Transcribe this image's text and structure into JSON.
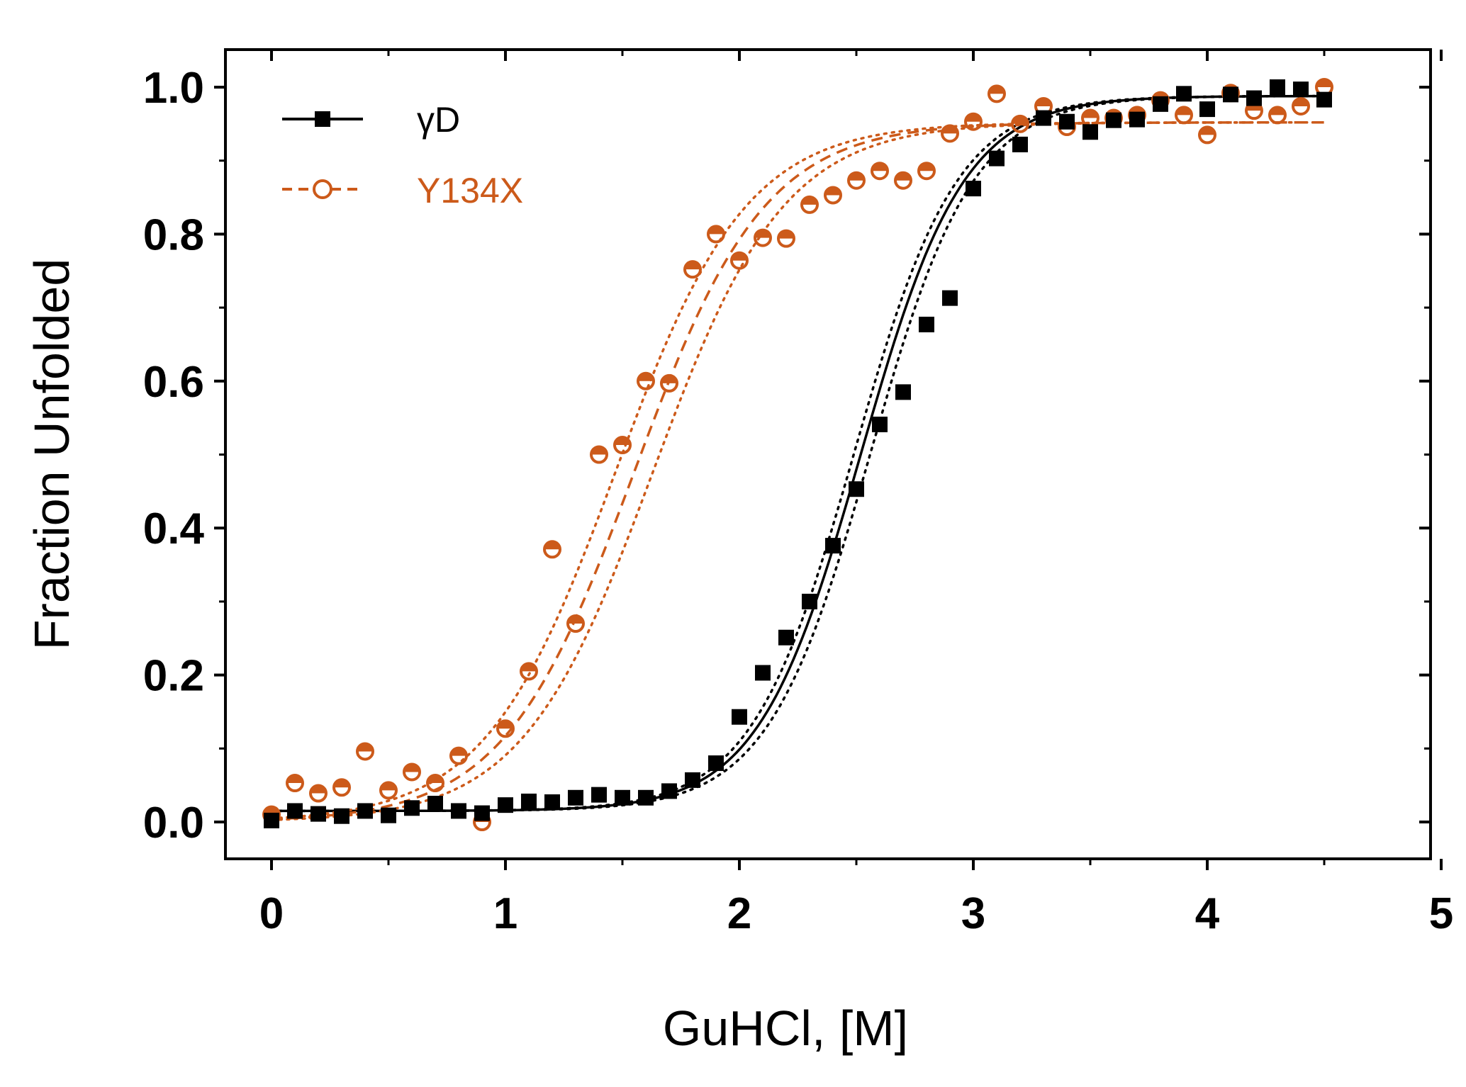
{
  "colors": {
    "gammaD": "#000000",
    "Y134X": "#cc5a1a",
    "axis": "#000000"
  },
  "chart_data": {
    "type": "scatter",
    "title": "",
    "xlabel": "GuHCl, [M]",
    "ylabel": "Fraction Unfolded",
    "xlim": [
      -0.2,
      5
    ],
    "ylim": [
      -0.05,
      1.06
    ],
    "xticks": [
      0,
      1,
      2,
      3,
      4,
      5
    ],
    "xtick_labels": [
      "0",
      "1",
      "2",
      "3",
      "4",
      "5"
    ],
    "yticks": [
      0.0,
      0.2,
      0.4,
      0.6,
      0.8,
      1.0
    ],
    "ytick_labels": [
      "0.0",
      "0.2",
      "0.4",
      "0.6",
      "0.8",
      "1.0"
    ],
    "grid": false,
    "legend_position": "top-left",
    "series": [
      {
        "name": "γD",
        "marker": "square",
        "line": "solid",
        "color": "#000000",
        "x": [
          0.0,
          0.1,
          0.2,
          0.3,
          0.4,
          0.5,
          0.6,
          0.7,
          0.8,
          0.9,
          1.0,
          1.1,
          1.2,
          1.3,
          1.4,
          1.5,
          1.6,
          1.7,
          1.8,
          1.9,
          2.0,
          2.1,
          2.2,
          2.3,
          2.4,
          2.5,
          2.6,
          2.7,
          2.8,
          2.9,
          3.0,
          3.1,
          3.2,
          3.3,
          3.4,
          3.5,
          3.6,
          3.7,
          3.8,
          3.9,
          4.0,
          4.1,
          4.2,
          4.3,
          4.4,
          4.5
        ],
        "y": [
          0.002,
          0.015,
          0.011,
          0.008,
          0.015,
          0.009,
          0.019,
          0.025,
          0.015,
          0.012,
          0.023,
          0.028,
          0.027,
          0.033,
          0.037,
          0.033,
          0.033,
          0.042,
          0.057,
          0.08,
          0.143,
          0.203,
          0.251,
          0.3,
          0.376,
          0.453,
          0.541,
          0.585,
          0.677,
          0.713,
          0.862,
          0.903,
          0.922,
          0.958,
          0.953,
          0.939,
          0.955,
          0.956,
          0.977,
          0.991,
          0.97,
          0.99,
          0.985,
          1.0,
          0.997,
          0.983
        ],
        "fit": {
          "model": "two-state sigmoid",
          "midpoint": 2.52,
          "width": 0.22,
          "baseline_folded": 0.015,
          "baseline_unfolded": 0.988
        },
        "confidence_band": {
          "style": "dotted",
          "midpoint_low": 2.49,
          "midpoint_high": 2.56
        }
      },
      {
        "name": "Y134X",
        "marker": "half-filled circle",
        "line": "dashed",
        "color": "#cc5a1a",
        "x": [
          0.0,
          0.1,
          0.2,
          0.3,
          0.4,
          0.5,
          0.6,
          0.7,
          0.8,
          0.9,
          1.0,
          1.1,
          1.2,
          1.3,
          1.4,
          1.5,
          1.6,
          1.7,
          1.8,
          1.9,
          2.0,
          2.1,
          2.2,
          2.3,
          2.4,
          2.5,
          2.6,
          2.7,
          2.8,
          2.9,
          3.0,
          3.1,
          3.2,
          3.3,
          3.4,
          3.5,
          3.6,
          3.7,
          3.8,
          3.9,
          4.0,
          4.1,
          4.2,
          4.3,
          4.4,
          4.5
        ],
        "y": [
          0.01,
          0.053,
          0.039,
          0.047,
          0.096,
          0.043,
          0.068,
          0.053,
          0.09,
          0.0,
          0.127,
          0.205,
          0.371,
          0.27,
          0.5,
          0.513,
          0.6,
          0.597,
          0.752,
          0.8,
          0.764,
          0.795,
          0.794,
          0.84,
          0.853,
          0.873,
          0.886,
          0.873,
          0.886,
          0.937,
          0.953,
          0.991,
          0.95,
          0.974,
          0.946,
          0.958,
          0.958,
          0.962,
          0.982,
          0.962,
          0.935,
          0.992,
          0.968,
          0.962,
          0.974,
          1.0
        ],
        "fit": {
          "model": "two-state sigmoid",
          "midpoint": 1.55,
          "width": 0.28,
          "baseline_folded": 0.0,
          "baseline_unfolded": 0.952
        },
        "confidence_band": {
          "style": "dotted",
          "midpoint_low": 1.47,
          "midpoint_high": 1.63
        }
      }
    ]
  }
}
